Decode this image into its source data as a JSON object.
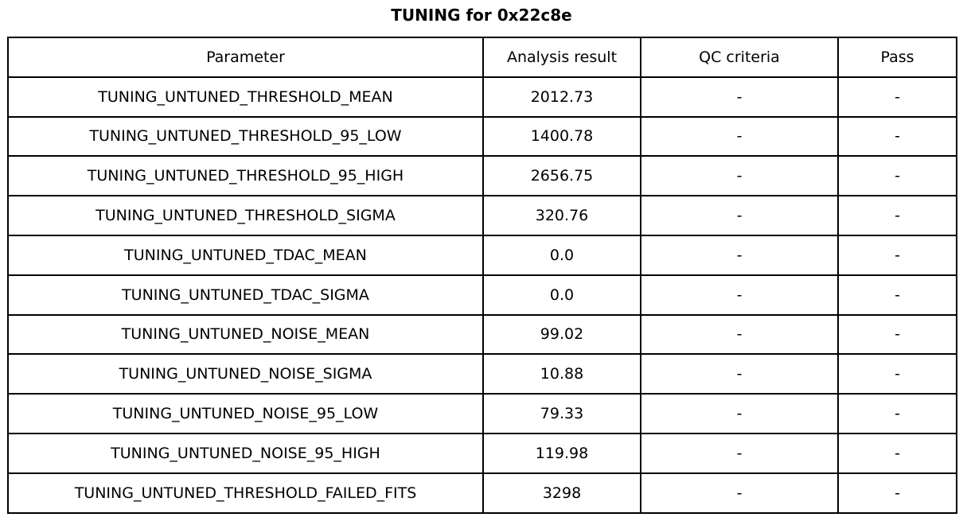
{
  "title": "TUNING for 0x22c8e",
  "colors": {
    "background": "#ffffff",
    "border": "#000000",
    "text": "#000000"
  },
  "chart_data": {
    "type": "table",
    "title": "TUNING for 0x22c8e",
    "columns": [
      "Parameter",
      "Analysis result",
      "QC criteria",
      "Pass"
    ],
    "rows": [
      [
        "TUNING_UNTUNED_THRESHOLD_MEAN",
        "2012.73",
        "-",
        "-"
      ],
      [
        "TUNING_UNTUNED_THRESHOLD_95_LOW",
        "1400.78",
        "-",
        "-"
      ],
      [
        "TUNING_UNTUNED_THRESHOLD_95_HIGH",
        "2656.75",
        "-",
        "-"
      ],
      [
        "TUNING_UNTUNED_THRESHOLD_SIGMA",
        "320.76",
        "-",
        "-"
      ],
      [
        "TUNING_UNTUNED_TDAC_MEAN",
        "0.0",
        "-",
        "-"
      ],
      [
        "TUNING_UNTUNED_TDAC_SIGMA",
        "0.0",
        "-",
        "-"
      ],
      [
        "TUNING_UNTUNED_NOISE_MEAN",
        "99.02",
        "-",
        "-"
      ],
      [
        "TUNING_UNTUNED_NOISE_SIGMA",
        "10.88",
        "-",
        "-"
      ],
      [
        "TUNING_UNTUNED_NOISE_95_LOW",
        "79.33",
        "-",
        "-"
      ],
      [
        "TUNING_UNTUNED_NOISE_95_HIGH",
        "119.98",
        "-",
        "-"
      ],
      [
        "TUNING_UNTUNED_THRESHOLD_FAILED_FITS",
        "3298",
        "-",
        "-"
      ]
    ]
  }
}
